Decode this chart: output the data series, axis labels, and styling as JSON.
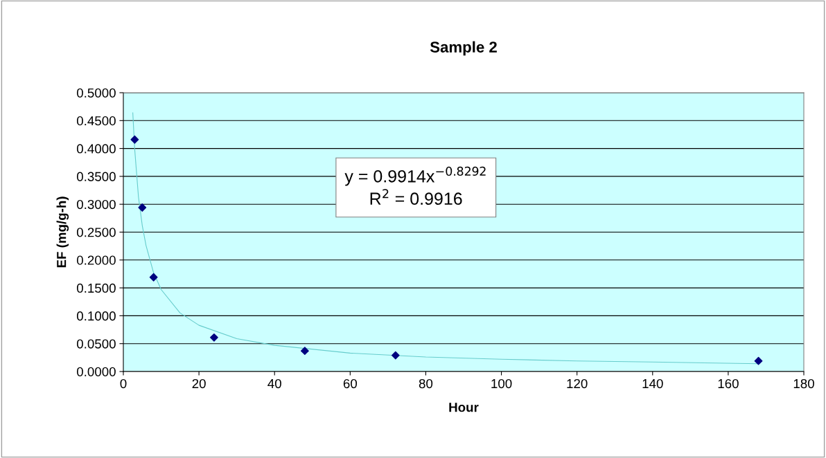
{
  "chart_data": {
    "type": "scatter",
    "title": "Sample 2",
    "xlabel": "Hour",
    "ylabel": "EF (mg/g-h)",
    "x": [
      3,
      5,
      8,
      24,
      48,
      72,
      168
    ],
    "series": [
      {
        "name": null,
        "color": "#000080",
        "marker": "diamond",
        "values": [
          0.416,
          0.294,
          0.169,
          0.061,
          0.037,
          0.029,
          0.019
        ]
      },
      {
        "name": null,
        "type": "line",
        "color": "#66cccc",
        "marker": "none",
        "line_style": "solid",
        "x": [
          2.5,
          3,
          4,
          5,
          6,
          8,
          10,
          15,
          20,
          30,
          40,
          60,
          80,
          100,
          120,
          140,
          168
        ],
        "values": [
          0.464,
          0.399,
          0.313,
          0.262,
          0.226,
          0.177,
          0.147,
          0.105,
          0.083,
          0.059,
          0.047,
          0.033,
          0.026,
          0.022,
          0.019,
          0.017,
          0.014
        ]
      }
    ],
    "annotations": [
      "y = 0.9914x$^{−0.8292}$",
      "R$^{2}$ = 0.9916"
    ],
    "xlim": [
      0,
      180
    ],
    "xticks": [
      0,
      20,
      40,
      60,
      80,
      100,
      120,
      140,
      160,
      180
    ],
    "ylim": [
      0,
      0.5
    ],
    "yticks": [
      {
        "value": 0,
        "label": "0.0000"
      },
      {
        "value": 0.05,
        "label": "0.0500"
      },
      {
        "value": 0.1,
        "label": "0.1000"
      },
      {
        "value": 0.15,
        "label": "0.1500"
      },
      {
        "value": 0.2,
        "label": "0.2000"
      },
      {
        "value": 0.25,
        "label": "0.2500"
      },
      {
        "value": 0.3,
        "label": "0.3000"
      },
      {
        "value": 0.35,
        "label": "0.3500"
      },
      {
        "value": 0.4,
        "label": "0.4000"
      },
      {
        "value": 0.45,
        "label": "0.4500"
      },
      {
        "value": 0.5,
        "label": "0.5000"
      }
    ],
    "grid": "y",
    "legend": false
  }
}
